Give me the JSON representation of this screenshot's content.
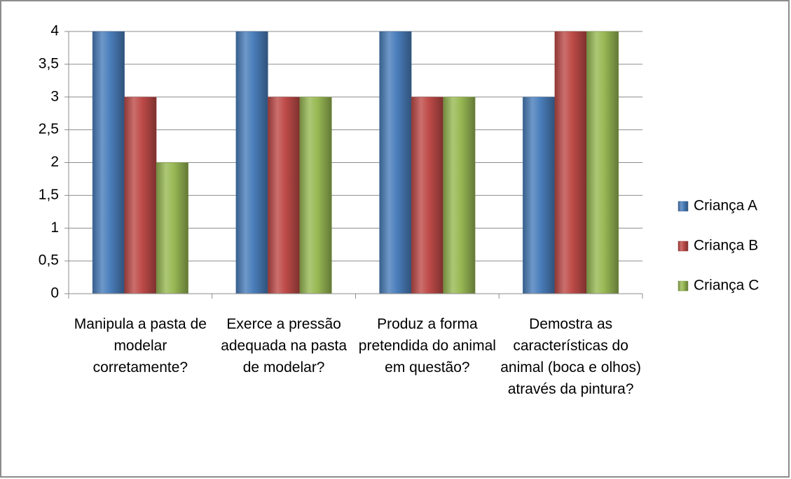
{
  "chart_data": {
    "type": "bar",
    "categories": [
      "Manipula a pasta de modelar corretamente?",
      "Exerce a pressão adequada na pasta de modelar?",
      "Produz a forma pretendida do animal em questão?",
      "Demostra as características do animal (boca e olhos) através da pintura?"
    ],
    "series": [
      {
        "name": "Criança A",
        "color": "#4a7ebb",
        "values": [
          4,
          4,
          4,
          3
        ]
      },
      {
        "name": "Criança B",
        "color": "#be4b48",
        "values": [
          3,
          3,
          3,
          4
        ]
      },
      {
        "name": "Criança C",
        "color": "#98b954",
        "values": [
          2,
          3,
          3,
          4
        ]
      }
    ],
    "ylim": [
      0,
      4
    ],
    "yticks": [
      0,
      {
        "value": 0.5,
        "label": "0,5"
      },
      1,
      {
        "value": 1.5,
        "label": "1,5"
      },
      2,
      {
        "value": 2.5,
        "label": "2,5"
      },
      3,
      {
        "value": 3.5,
        "label": "3,5"
      },
      4
    ],
    "grid": true,
    "legend": "right"
  }
}
